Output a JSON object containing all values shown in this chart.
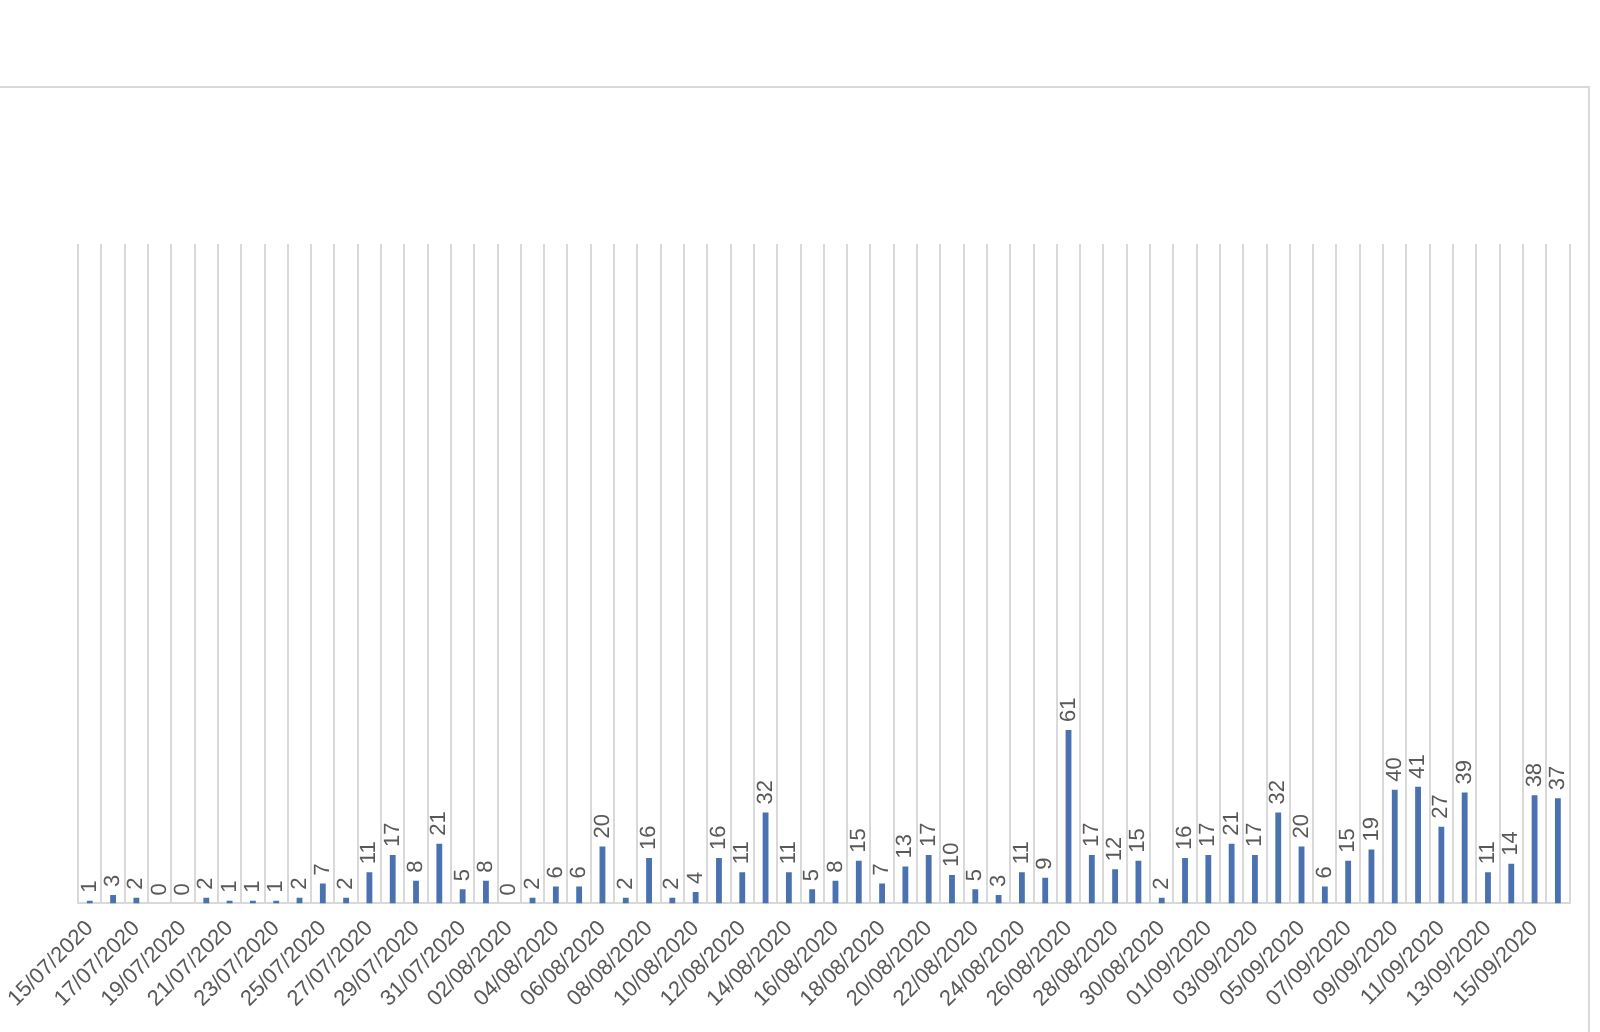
{
  "chart_data": {
    "type": "bar",
    "data_labels": true,
    "grid": "x",
    "legend": false,
    "color": "#4a72b0",
    "categories": [
      "15/07/2020",
      null,
      "17/07/2020",
      null,
      "19/07/2020",
      null,
      "21/07/2020",
      null,
      "23/07/2020",
      null,
      "25/07/2020",
      null,
      "27/07/2020",
      null,
      "29/07/2020",
      null,
      "31/07/2020",
      null,
      "02/08/2020",
      null,
      "04/08/2020",
      null,
      "06/08/2020",
      null,
      "08/08/2020",
      null,
      "10/08/2020",
      null,
      "12/08/2020",
      null,
      "14/08/2020",
      null,
      "16/08/2020",
      null,
      "18/08/2020",
      null,
      "20/08/2020",
      null,
      "22/08/2020",
      null,
      "24/08/2020",
      null,
      "26/08/2020",
      null,
      "28/08/2020",
      null,
      "30/08/2020",
      null,
      "01/09/2020",
      null,
      "03/09/2020",
      null,
      "05/09/2020",
      null,
      "07/09/2020",
      null,
      "09/09/2020",
      null,
      "11/09/2020",
      null,
      "13/09/2020",
      null,
      "15/09/2020",
      null
    ],
    "values": [
      1,
      3,
      2,
      0,
      0,
      2,
      1,
      1,
      1,
      2,
      7,
      2,
      11,
      17,
      8,
      21,
      5,
      8,
      0,
      2,
      6,
      6,
      20,
      2,
      16,
      2,
      4,
      16,
      11,
      32,
      11,
      5,
      8,
      15,
      7,
      13,
      17,
      10,
      5,
      3,
      11,
      9,
      61,
      17,
      12,
      15,
      2,
      16,
      17,
      21,
      17,
      32,
      20,
      6,
      15,
      19,
      40,
      41,
      27,
      39,
      11,
      14,
      38,
      37
    ]
  }
}
